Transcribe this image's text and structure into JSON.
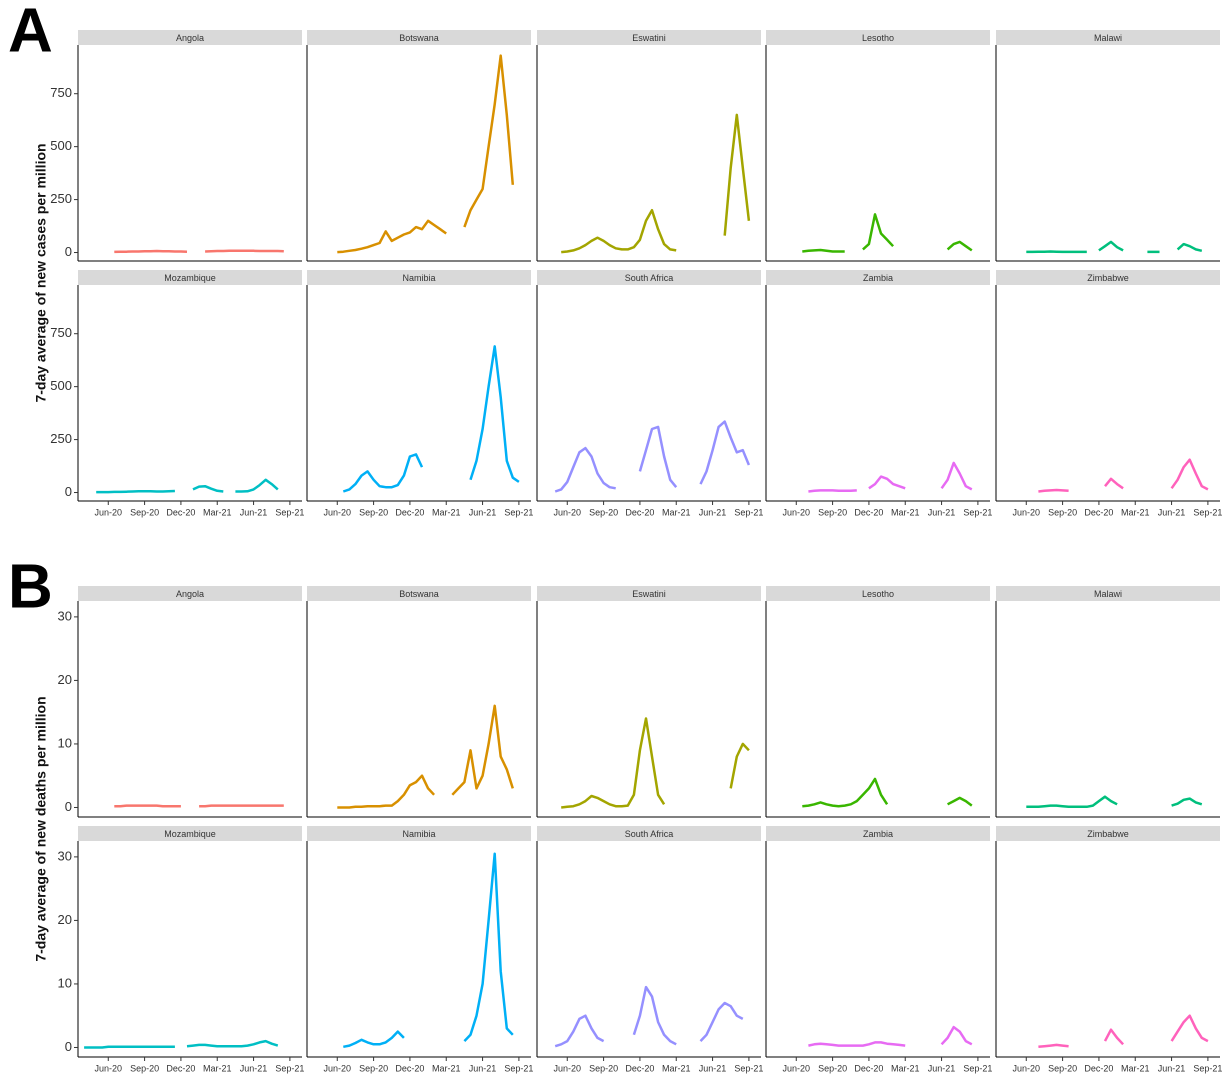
{
  "chart_data": [
    {
      "type": "line",
      "label": "A",
      "y_label": "7-day average of new cases per million",
      "x": [
        4,
        4.5,
        5,
        5.5,
        6,
        6.5,
        7,
        7.5,
        8,
        8.5,
        9,
        9.5,
        10,
        10.5,
        11,
        11.5,
        12,
        12.5,
        13,
        13.5,
        14,
        14.5,
        15,
        15.5,
        16,
        16.5,
        17,
        17.5,
        18,
        18.5,
        19,
        19.5,
        20,
        20.5,
        21,
        21.5
      ],
      "xlim": [
        3.5,
        22
      ],
      "xticks": [
        {
          "value": 6,
          "label": "Jun-20"
        },
        {
          "value": 9,
          "label": "Sep-20"
        },
        {
          "value": 12,
          "label": "Dec-20"
        },
        {
          "value": 15,
          "label": "Mar-21"
        },
        {
          "value": 18,
          "label": "Jun-21"
        },
        {
          "value": 21,
          "label": "Sep-21"
        }
      ],
      "ylim": [
        -40,
        980
      ],
      "yticks": [
        0,
        250,
        500,
        750
      ],
      "series": [
        {
          "name": "Angola",
          "color": "#F8766D",
          "values": [
            null,
            null,
            null,
            null,
            null,
            3,
            4,
            4,
            5,
            5,
            6,
            6,
            7,
            6,
            6,
            5,
            5,
            4,
            null,
            null,
            5,
            6,
            7,
            7,
            8,
            8,
            8,
            8,
            8,
            7,
            7,
            7,
            7,
            6,
            null,
            null
          ]
        },
        {
          "name": "Botswana",
          "color": "#D89000",
          "values": [
            null,
            null,
            null,
            null,
            2,
            4,
            8,
            12,
            18,
            25,
            35,
            45,
            100,
            55,
            70,
            85,
            95,
            120,
            110,
            150,
            130,
            110,
            90,
            null,
            null,
            120,
            200,
            250,
            300,
            500,
            700,
            930,
            650,
            320,
            null,
            null
          ]
        },
        {
          "name": "Eswatini",
          "color": "#A3A500",
          "values": [
            null,
            null,
            null,
            2,
            5,
            10,
            20,
            35,
            55,
            70,
            55,
            35,
            20,
            15,
            15,
            25,
            60,
            150,
            200,
            110,
            40,
            15,
            10,
            null,
            null,
            null,
            null,
            null,
            null,
            null,
            80,
            400,
            650,
            400,
            150,
            null
          ]
        },
        {
          "name": "Lesotho",
          "color": "#39B600",
          "values": [
            null,
            null,
            null,
            null,
            null,
            5,
            8,
            10,
            12,
            8,
            5,
            5,
            5,
            null,
            null,
            15,
            40,
            180,
            90,
            60,
            30,
            null,
            null,
            null,
            null,
            null,
            null,
            null,
            null,
            15,
            40,
            50,
            30,
            10,
            null,
            null
          ]
        },
        {
          "name": "Malawi",
          "color": "#00BF7D",
          "values": [
            null,
            null,
            null,
            null,
            3,
            3,
            4,
            4,
            5,
            4,
            3,
            3,
            3,
            3,
            3,
            null,
            10,
            30,
            50,
            25,
            10,
            null,
            null,
            null,
            3,
            3,
            3,
            null,
            null,
            15,
            40,
            30,
            15,
            8,
            null,
            null
          ]
        },
        {
          "name": "Mozambique",
          "color": "#00BFC4",
          "values": [
            null,
            null,
            2,
            2,
            2,
            3,
            3,
            4,
            5,
            6,
            6,
            6,
            5,
            5,
            6,
            7,
            null,
            null,
            15,
            28,
            30,
            18,
            8,
            5,
            null,
            5,
            5,
            6,
            15,
            35,
            60,
            40,
            15,
            null,
            null,
            null
          ]
        },
        {
          "name": "Namibia",
          "color": "#00B0F6",
          "values": [
            null,
            null,
            null,
            null,
            null,
            5,
            15,
            40,
            80,
            100,
            60,
            30,
            25,
            25,
            35,
            80,
            170,
            180,
            120,
            null,
            null,
            null,
            null,
            null,
            null,
            null,
            60,
            150,
            300,
            500,
            690,
            450,
            150,
            70,
            50,
            null
          ]
        },
        {
          "name": "South Africa",
          "color": "#9590FF",
          "values": [
            null,
            null,
            5,
            15,
            50,
            120,
            190,
            210,
            170,
            90,
            45,
            25,
            20,
            null,
            null,
            null,
            100,
            200,
            300,
            310,
            170,
            60,
            25,
            null,
            null,
            null,
            40,
            100,
            200,
            310,
            335,
            260,
            190,
            200,
            130,
            null
          ]
        },
        {
          "name": "Zambia",
          "color": "#E76BF3",
          "values": [
            null,
            null,
            null,
            null,
            null,
            null,
            5,
            8,
            10,
            10,
            10,
            8,
            8,
            8,
            10,
            null,
            20,
            40,
            75,
            65,
            40,
            30,
            20,
            null,
            null,
            null,
            null,
            null,
            20,
            60,
            140,
            90,
            30,
            15,
            null,
            null
          ]
        },
        {
          "name": "Zimbabwe",
          "color": "#FF62BC",
          "values": [
            null,
            null,
            null,
            null,
            null,
            null,
            5,
            8,
            10,
            12,
            10,
            8,
            null,
            null,
            null,
            null,
            null,
            30,
            65,
            40,
            20,
            null,
            null,
            null,
            null,
            null,
            null,
            null,
            20,
            60,
            120,
            155,
            90,
            30,
            15,
            null
          ]
        }
      ]
    },
    {
      "type": "line",
      "label": "B",
      "y_label": "7-day average of new deaths per million",
      "x": [
        4,
        4.5,
        5,
        5.5,
        6,
        6.5,
        7,
        7.5,
        8,
        8.5,
        9,
        9.5,
        10,
        10.5,
        11,
        11.5,
        12,
        12.5,
        13,
        13.5,
        14,
        14.5,
        15,
        15.5,
        16,
        16.5,
        17,
        17.5,
        18,
        18.5,
        19,
        19.5,
        20,
        20.5,
        21,
        21.5
      ],
      "xlim": [
        3.5,
        22
      ],
      "xticks": [
        {
          "value": 6,
          "label": "Jun-20"
        },
        {
          "value": 9,
          "label": "Sep-20"
        },
        {
          "value": 12,
          "label": "Dec-20"
        },
        {
          "value": 15,
          "label": "Mar-21"
        },
        {
          "value": 18,
          "label": "Jun-21"
        },
        {
          "value": 21,
          "label": "Sep-21"
        }
      ],
      "ylim": [
        -1.5,
        32.5
      ],
      "yticks": [
        0,
        10,
        20,
        30
      ],
      "series": [
        {
          "name": "Angola",
          "color": "#F8766D",
          "values": [
            null,
            null,
            null,
            null,
            null,
            0.2,
            0.2,
            0.3,
            0.3,
            0.3,
            0.3,
            0.3,
            0.3,
            0.2,
            0.2,
            0.2,
            0.2,
            null,
            null,
            0.2,
            0.2,
            0.3,
            0.3,
            0.3,
            0.3,
            0.3,
            0.3,
            0.3,
            0.3,
            0.3,
            0.3,
            0.3,
            0.3,
            0.3,
            null,
            null
          ]
        },
        {
          "name": "Botswana",
          "color": "#D89000",
          "values": [
            null,
            null,
            null,
            null,
            0,
            0,
            0,
            0.1,
            0.1,
            0.2,
            0.2,
            0.2,
            0.3,
            0.3,
            1,
            2,
            3.5,
            4,
            5,
            3,
            2,
            null,
            null,
            2,
            3,
            4,
            9,
            3,
            5,
            10,
            16,
            8,
            6,
            3,
            null,
            null
          ]
        },
        {
          "name": "Eswatini",
          "color": "#A3A500",
          "values": [
            null,
            null,
            null,
            0,
            0.1,
            0.2,
            0.5,
            1,
            1.8,
            1.5,
            1,
            0.5,
            0.2,
            0.2,
            0.3,
            2,
            9,
            14,
            8,
            2,
            0.5,
            null,
            null,
            null,
            null,
            null,
            null,
            null,
            null,
            null,
            null,
            3,
            8,
            10,
            9,
            null
          ]
        },
        {
          "name": "Lesotho",
          "color": "#39B600",
          "values": [
            null,
            null,
            null,
            null,
            null,
            0.2,
            0.3,
            0.5,
            0.8,
            0.5,
            0.3,
            0.2,
            0.3,
            0.5,
            1,
            2,
            3,
            4.5,
            2,
            0.5,
            null,
            null,
            null,
            null,
            null,
            null,
            null,
            null,
            null,
            0.5,
            1,
            1.5,
            1,
            0.3,
            null,
            null
          ]
        },
        {
          "name": "Malawi",
          "color": "#00BF7D",
          "values": [
            null,
            null,
            null,
            null,
            0.1,
            0.1,
            0.1,
            0.2,
            0.3,
            0.3,
            0.2,
            0.1,
            0.1,
            0.1,
            0.1,
            0.3,
            1,
            1.7,
            1,
            0.5,
            null,
            null,
            null,
            null,
            null,
            null,
            null,
            null,
            0.3,
            0.6,
            1.2,
            1.4,
            0.8,
            0.5,
            null,
            null
          ]
        },
        {
          "name": "Mozambique",
          "color": "#00BFC4",
          "values": [
            0,
            0,
            0,
            0,
            0.1,
            0.1,
            0.1,
            0.1,
            0.1,
            0.1,
            0.1,
            0.1,
            0.1,
            0.1,
            0.1,
            0.1,
            null,
            0.2,
            0.3,
            0.4,
            0.4,
            0.3,
            0.2,
            0.2,
            0.2,
            0.2,
            0.2,
            0.3,
            0.5,
            0.8,
            1,
            0.6,
            0.3,
            null,
            null,
            null
          ]
        },
        {
          "name": "Namibia",
          "color": "#00B0F6",
          "values": [
            null,
            null,
            null,
            null,
            null,
            0.1,
            0.3,
            0.7,
            1.2,
            0.8,
            0.5,
            0.5,
            0.8,
            1.5,
            2.5,
            1.5,
            null,
            null,
            null,
            null,
            null,
            null,
            null,
            null,
            null,
            1,
            2,
            5,
            10,
            20,
            30.5,
            12,
            3,
            2,
            null,
            null
          ]
        },
        {
          "name": "South Africa",
          "color": "#9590FF",
          "values": [
            null,
            null,
            0.2,
            0.5,
            1,
            2.5,
            4.5,
            5,
            3,
            1.5,
            1,
            null,
            null,
            null,
            null,
            2,
            5,
            9.5,
            8,
            4,
            2,
            1,
            0.5,
            null,
            null,
            null,
            1,
            2,
            4,
            6,
            7,
            6.5,
            5,
            4.5,
            null,
            null
          ]
        },
        {
          "name": "Zambia",
          "color": "#E76BF3",
          "values": [
            null,
            null,
            null,
            null,
            null,
            null,
            0.3,
            0.5,
            0.6,
            0.5,
            0.4,
            0.3,
            0.3,
            0.3,
            0.3,
            0.3,
            0.5,
            0.8,
            0.8,
            0.6,
            0.5,
            0.4,
            0.3,
            null,
            null,
            null,
            null,
            null,
            0.5,
            1.5,
            3.2,
            2.5,
            1,
            0.5,
            null,
            null
          ]
        },
        {
          "name": "Zimbabwe",
          "color": "#FF62BC",
          "values": [
            null,
            null,
            null,
            null,
            null,
            null,
            0.1,
            0.2,
            0.3,
            0.4,
            0.3,
            0.2,
            null,
            null,
            null,
            null,
            null,
            1,
            2.8,
            1.5,
            0.5,
            null,
            null,
            null,
            null,
            null,
            null,
            null,
            1,
            2.5,
            4,
            5,
            3,
            1.5,
            1,
            null
          ]
        }
      ]
    }
  ]
}
